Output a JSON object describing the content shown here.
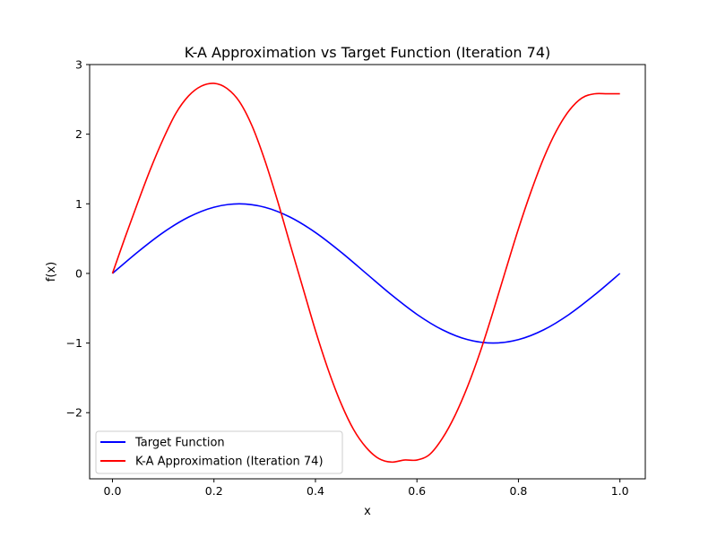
{
  "chart_data": {
    "type": "line",
    "title": "K-A Approximation vs Target Function (Iteration 74)",
    "xlabel": "x",
    "ylabel": "f(x)",
    "xlim": [
      -0.045,
      1.05
    ],
    "ylim": [
      -2.95,
      3.0
    ],
    "xticks": [
      0.0,
      0.2,
      0.4,
      0.6,
      0.8,
      1.0
    ],
    "xtick_labels": [
      "0.0",
      "0.2",
      "0.4",
      "0.6",
      "0.8",
      "1.0"
    ],
    "yticks": [
      -2,
      -1,
      0,
      1,
      2,
      3
    ],
    "ytick_labels": [
      "−2",
      "−1",
      "0",
      "1",
      "2",
      "3"
    ],
    "grid": false,
    "legend_position": "lower-left",
    "series": [
      {
        "name": "Target Function",
        "color": "#0000ff",
        "x": [
          0.0,
          0.05,
          0.1,
          0.15,
          0.2,
          0.25,
          0.3,
          0.35,
          0.4,
          0.45,
          0.5,
          0.55,
          0.6,
          0.65,
          0.7,
          0.75,
          0.8,
          0.85,
          0.9,
          0.95,
          1.0
        ],
        "y": [
          0.0,
          0.309,
          0.588,
          0.809,
          0.951,
          1.0,
          0.951,
          0.809,
          0.588,
          0.309,
          0.0,
          -0.309,
          -0.588,
          -0.809,
          -0.951,
          -1.0,
          -0.951,
          -0.809,
          -0.588,
          -0.309,
          0.0
        ]
      },
      {
        "name": "K-A Approximation (Iteration 74)",
        "color": "#ff0000",
        "x": [
          0.0,
          0.025,
          0.05,
          0.075,
          0.1,
          0.125,
          0.15,
          0.175,
          0.2,
          0.225,
          0.25,
          0.275,
          0.3,
          0.325,
          0.35,
          0.375,
          0.4,
          0.425,
          0.45,
          0.475,
          0.5,
          0.525,
          0.55,
          0.575,
          0.6,
          0.625,
          0.65,
          0.675,
          0.7,
          0.725,
          0.75,
          0.775,
          0.8,
          0.825,
          0.85,
          0.875,
          0.9,
          0.925,
          0.95,
          0.975,
          1.0
        ],
        "y": [
          0.0,
          0.52,
          1.02,
          1.5,
          1.93,
          2.3,
          2.55,
          2.69,
          2.73,
          2.66,
          2.47,
          2.12,
          1.63,
          1.05,
          0.42,
          -0.2,
          -0.82,
          -1.38,
          -1.86,
          -2.24,
          -2.5,
          -2.66,
          -2.71,
          -2.68,
          -2.68,
          -2.6,
          -2.37,
          -2.04,
          -1.62,
          -1.12,
          -0.55,
          0.05,
          0.64,
          1.18,
          1.66,
          2.05,
          2.34,
          2.52,
          2.58,
          2.58,
          2.58
        ]
      }
    ]
  }
}
